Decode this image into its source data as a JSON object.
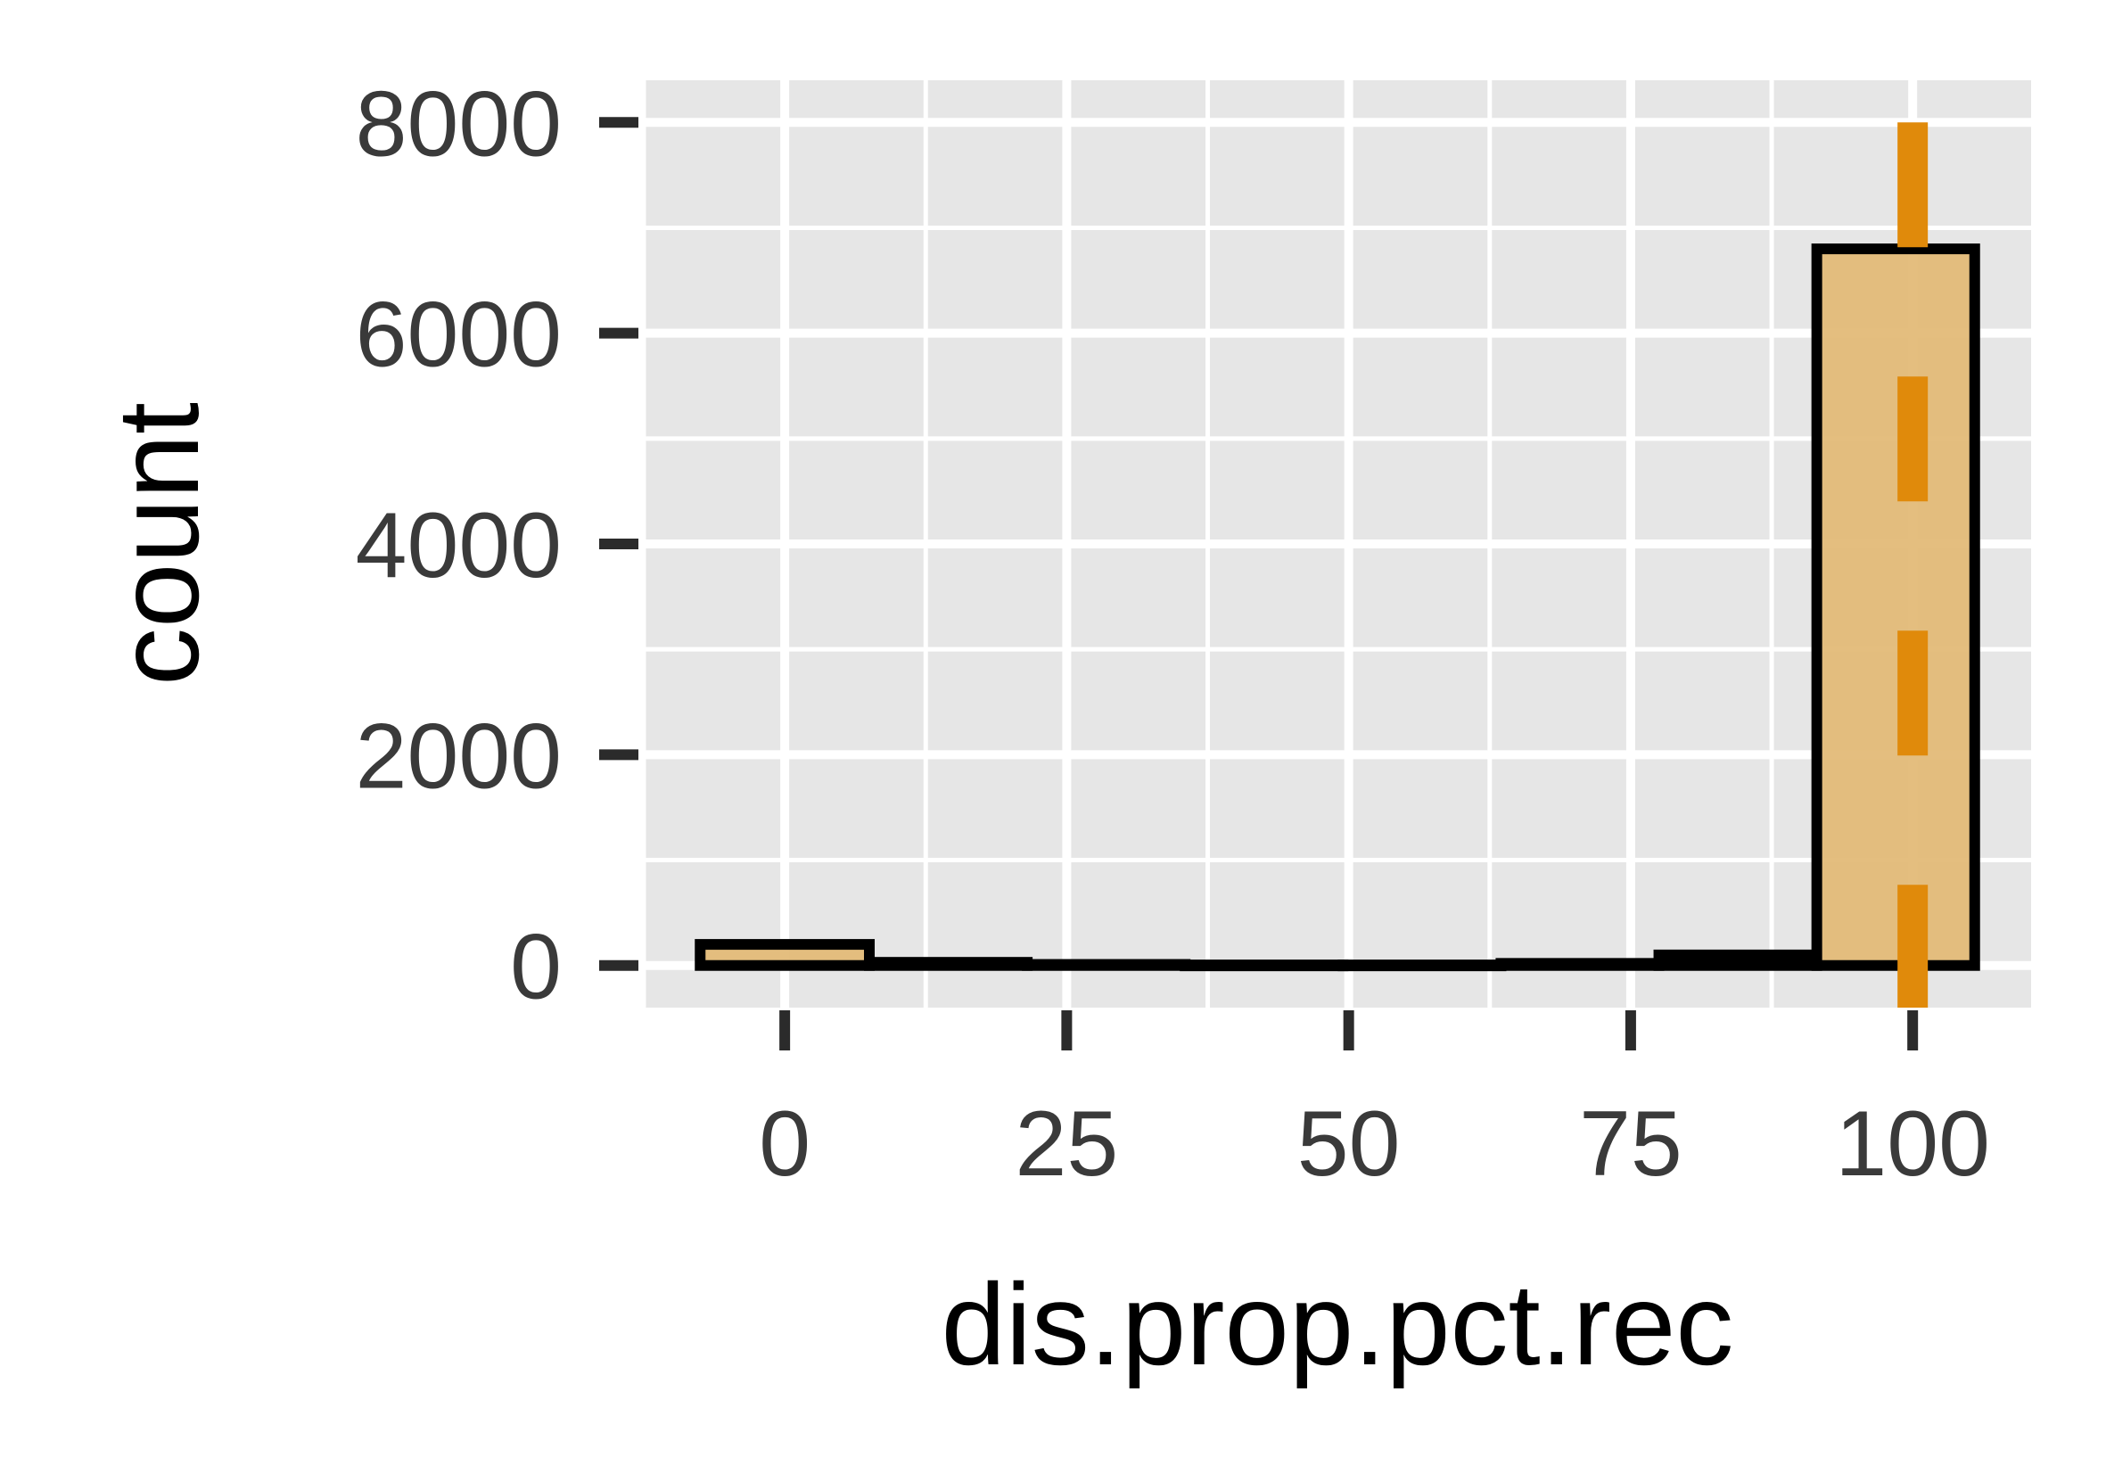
{
  "chart_data": {
    "type": "bar",
    "xlabel": "dis.prop.pct.rec",
    "ylabel": "count",
    "xlim": [
      -12.5,
      110.5
    ],
    "ylim": [
      -400,
      8400
    ],
    "x_ticks": [
      0,
      25,
      50,
      75,
      100
    ],
    "y_ticks": [
      0,
      2000,
      4000,
      6000,
      8000
    ],
    "bins": [
      {
        "x_start": -7.5,
        "x_end": 7.5,
        "count": 200
      },
      {
        "x_start": 7.5,
        "x_end": 21.5,
        "count": 30
      },
      {
        "x_start": 21.5,
        "x_end": 35.5,
        "count": 10
      },
      {
        "x_start": 35.5,
        "x_end": 49.5,
        "count": 5
      },
      {
        "x_start": 49.5,
        "x_end": 63.5,
        "count": 5
      },
      {
        "x_start": 63.5,
        "x_end": 77.5,
        "count": 20
      },
      {
        "x_start": 77.5,
        "x_end": 91.5,
        "count": 100
      },
      {
        "x_start": 91.5,
        "x_end": 105.5,
        "count": 6800
      }
    ],
    "reference_line": {
      "x": 100,
      "style": "dashed",
      "color": "#e08a0b"
    },
    "grid": true,
    "colors": {
      "bar_fill": "#e3bb78",
      "bar_stroke": "#000000",
      "panel_background": "#e6e6e6",
      "grid": "#ffffff"
    }
  }
}
